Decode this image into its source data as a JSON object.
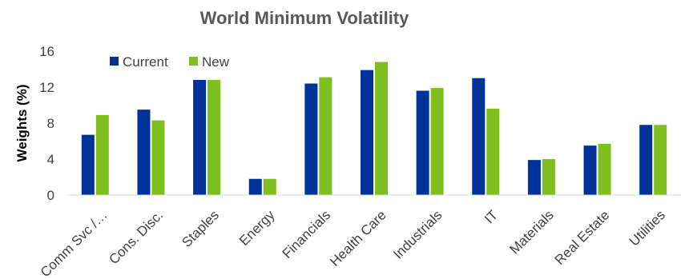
{
  "chart_data": {
    "type": "bar",
    "title": "World Minimum Volatility",
    "xlabel": "",
    "ylabel": "Weights (%)",
    "ylim": [
      0,
      16
    ],
    "yticks": [
      0,
      4,
      8,
      12,
      16
    ],
    "grid": false,
    "legend_position": "top-left",
    "categories": [
      "Comm Svc /…",
      "Cons. Disc.",
      "Staples",
      "Energy",
      "Financials",
      "Health Care",
      "Industrials",
      "IT",
      "Materials",
      "Real Estate",
      "Utilities"
    ],
    "series": [
      {
        "name": "Current",
        "color": "#003399",
        "values": [
          6.7,
          9.5,
          12.8,
          1.8,
          12.4,
          13.9,
          11.6,
          13.0,
          3.9,
          5.5,
          7.8
        ]
      },
      {
        "name": "New",
        "color": "#7fbf1f",
        "values": [
          8.9,
          8.3,
          12.8,
          1.8,
          13.1,
          14.8,
          11.9,
          9.6,
          4.0,
          5.7,
          7.8
        ]
      }
    ]
  }
}
